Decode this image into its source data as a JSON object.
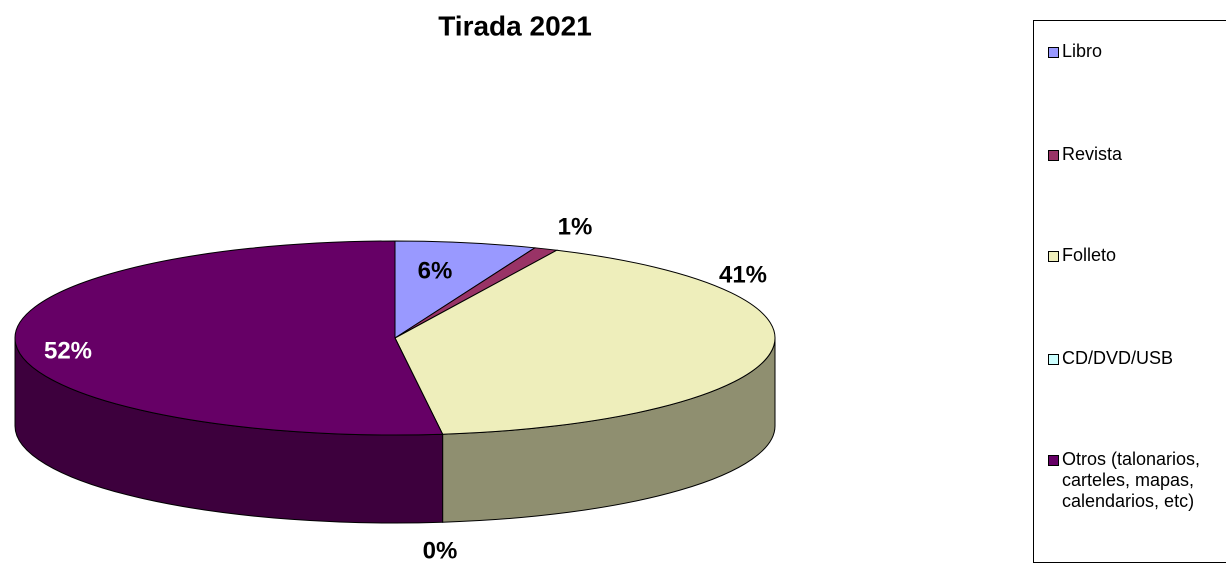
{
  "chart_data": {
    "type": "pie3d",
    "title": "Tirada 2021",
    "categories": [
      "Libro",
      "Revista",
      "Folleto",
      "CD/DVD/USB",
      "Otros (talonarios, carteles, mapas, calendarios, etc)"
    ],
    "values": [
      6,
      1,
      41,
      0,
      52
    ],
    "value_labels": [
      "6%",
      "1%",
      "41%",
      "0%",
      "52%"
    ],
    "colors": [
      "#9999ff",
      "#993366",
      "#eeeebb",
      "#ccffff",
      "#660066"
    ],
    "legend": "right"
  }
}
